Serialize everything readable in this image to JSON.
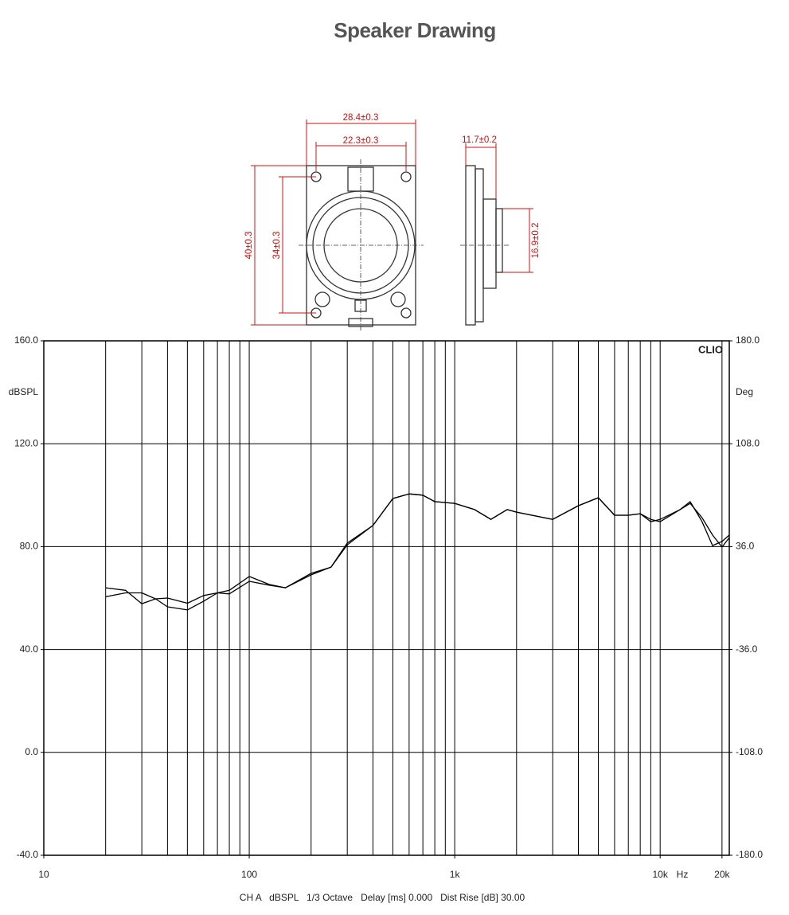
{
  "page_title": "Speaker Drawing",
  "drawing": {
    "dimensions": [
      "28.4±0.3",
      "22.3±0.3",
      "40±0.3",
      "34±0.3",
      "11.7±0.2",
      "16.9±0.2"
    ]
  },
  "chart_data": {
    "type": "line",
    "xscale": "log",
    "xlim": [
      10,
      21700
    ],
    "xticks": [
      10,
      100,
      {
        "value": 1000,
        "label": "1k"
      },
      {
        "value": 10000,
        "label": "10k"
      },
      {
        "value": 20000,
        "label": "20k"
      }
    ],
    "xminor": [
      20,
      30,
      40,
      50,
      60,
      70,
      80,
      90,
      200,
      300,
      400,
      500,
      600,
      700,
      800,
      900,
      2000,
      3000,
      4000,
      5000,
      6000,
      7000,
      8000,
      9000
    ],
    "xlabel": "Hz",
    "ylim": [
      -40,
      160
    ],
    "yticks": [
      {
        "value": -40,
        "label": "-40.0"
      },
      {
        "value": 0,
        "label": "0.0"
      },
      {
        "value": 40,
        "label": "40.0"
      },
      {
        "value": 80,
        "label": "80.0"
      },
      {
        "value": 120,
        "label": "120.0"
      },
      {
        "value": 160,
        "label": "160.0"
      }
    ],
    "ylabel": "dBSPL",
    "y2lim": [
      -180,
      180
    ],
    "y2ticks": [
      {
        "value": -180,
        "label": "-180.0"
      },
      {
        "value": -108,
        "label": "-108.0"
      },
      {
        "value": -36,
        "label": "-36.0"
      },
      {
        "value": 36,
        "label": "36.0"
      },
      {
        "value": 108,
        "label": "108.0"
      },
      {
        "value": 180,
        "label": "180.0"
      }
    ],
    "y2label": "Deg",
    "annotation": "CLIO",
    "footer": "CH A   dBSPL   1/3 Octave   Delay [ms] 0.000   Dist Rise [dB] 30.00",
    "grid": true,
    "x": [
      20,
      25,
      30,
      35,
      40,
      50,
      60,
      70,
      80,
      100,
      125,
      150,
      200,
      250,
      300,
      400,
      500,
      600,
      700,
      800,
      1000,
      1250,
      1500,
      1800,
      2000,
      3000,
      4000,
      5000,
      6000,
      7000,
      8000,
      9000,
      10000,
      12500,
      14000,
      16000,
      18000,
      20000,
      21700
    ],
    "series": [
      {
        "color": "#000000",
        "values": [
          64,
          63,
          57.8,
          59.7,
          56.6,
          55.4,
          58.8,
          62,
          63,
          68.4,
          65.3,
          64,
          69,
          72,
          81.4,
          88.2,
          98.7,
          100.5,
          100,
          97.5,
          96.8,
          94.4,
          90.6,
          94.4,
          93.4,
          90.6,
          95.9,
          99,
          92.2,
          92.2,
          92.8,
          90.6,
          89.7,
          94.4,
          97.5,
          89.7,
          80.4,
          82,
          84.5
        ]
      },
      {
        "color": "#000000",
        "values": [
          60.5,
          62,
          62,
          59.7,
          60,
          58,
          61,
          62,
          61.6,
          66.5,
          65,
          64,
          69.6,
          72,
          80.7,
          88.2,
          98.7,
          100.5,
          100,
          97.5,
          96.8,
          94.4,
          90.6,
          94.4,
          93.4,
          90.6,
          95.9,
          99,
          92.2,
          92.2,
          92.8,
          89.7,
          90.6,
          94.4,
          96.8,
          91.2,
          84.5,
          79.8,
          83.5
        ]
      }
    ]
  }
}
